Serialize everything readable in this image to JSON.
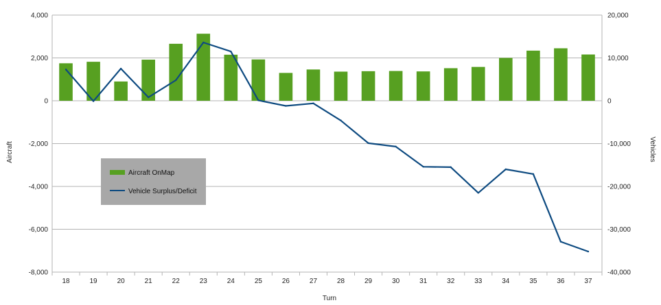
{
  "chart_data": {
    "type": "bar+line",
    "title": "",
    "xlabel": "Turn",
    "ylabel_left": "Aircraft",
    "ylabel_right": "Vehicles",
    "categories": [
      "18",
      "19",
      "20",
      "21",
      "22",
      "23",
      "24",
      "25",
      "26",
      "27",
      "28",
      "29",
      "30",
      "31",
      "32",
      "33",
      "34",
      "35",
      "36",
      "37"
    ],
    "ylim_left": [
      -8000,
      4000
    ],
    "ylim_right": [
      -40000,
      20000
    ],
    "left_ticks": [
      "4,000",
      "2,000",
      "0",
      "-2,000",
      "-4,000",
      "-6,000",
      "-8,000"
    ],
    "right_ticks": [
      "20,000",
      "10,000",
      "0",
      "-10,000",
      "-20,000",
      "-30,000",
      "-40,000"
    ],
    "grid": true,
    "legend_position": "left-middle",
    "series": [
      {
        "name": "Aircraft OnMap",
        "type": "bar",
        "axis": "left",
        "color": "#57a021",
        "values": [
          1750,
          1820,
          900,
          1920,
          2660,
          3130,
          2150,
          1930,
          1300,
          1460,
          1360,
          1380,
          1390,
          1370,
          1520,
          1580,
          2000,
          2340,
          2450,
          2160
        ]
      },
      {
        "name": "Vehicle Surplus/Deficit",
        "type": "line",
        "axis": "right",
        "color": "#0d4a80",
        "values": [
          7300,
          -100,
          7500,
          800,
          4800,
          13600,
          11500,
          100,
          -1200,
          -600,
          -4600,
          -9900,
          -10700,
          -15400,
          -15500,
          -21500,
          -16000,
          -17100,
          -32900,
          -35200
        ]
      }
    ]
  }
}
